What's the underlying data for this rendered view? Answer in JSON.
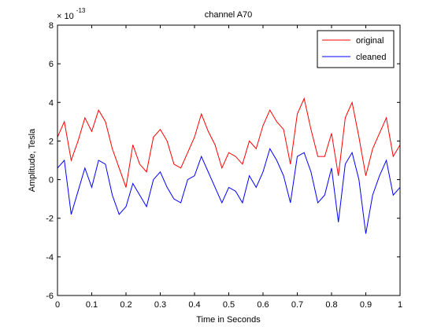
{
  "chart_data": {
    "type": "line",
    "title": "channel A70",
    "xlabel": "Time in Seconds",
    "ylabel": "Amplitude, Tesla",
    "xlim": [
      0,
      1
    ],
    "ylim": [
      -6,
      8
    ],
    "y_exponent_label": "× 10",
    "y_exponent_power": "-13",
    "x_ticks": [
      "0",
      "0.1",
      "0.2",
      "0.3",
      "0.4",
      "0.5",
      "0.6",
      "0.7",
      "0.8",
      "0.9",
      "1"
    ],
    "y_ticks": [
      "-6",
      "-4",
      "-2",
      "0",
      "2",
      "4",
      "6",
      "8"
    ],
    "grid": false,
    "legend_position": "top-right",
    "legend": [
      "original",
      "cleaned"
    ],
    "series": [
      {
        "name": "original",
        "color": "#ff0000",
        "x": [
          0,
          0.02,
          0.04,
          0.06,
          0.08,
          0.1,
          0.12,
          0.14,
          0.16,
          0.18,
          0.2,
          0.22,
          0.24,
          0.26,
          0.28,
          0.3,
          0.32,
          0.34,
          0.36,
          0.38,
          0.4,
          0.42,
          0.44,
          0.46,
          0.48,
          0.5,
          0.52,
          0.54,
          0.56,
          0.58,
          0.6,
          0.62,
          0.64,
          0.66,
          0.68,
          0.7,
          0.72,
          0.74,
          0.76,
          0.78,
          0.8,
          0.82,
          0.84,
          0.86,
          0.88,
          0.9,
          0.92,
          0.94,
          0.96,
          0.98,
          1
        ],
        "values": [
          2.2,
          3.0,
          1.0,
          2.0,
          3.2,
          2.5,
          3.6,
          3.0,
          1.6,
          0.6,
          -0.4,
          1.8,
          0.8,
          0.4,
          2.2,
          2.6,
          2.0,
          0.8,
          0.6,
          1.4,
          2.2,
          3.4,
          2.5,
          1.8,
          0.6,
          1.4,
          1.2,
          0.8,
          2.0,
          1.6,
          2.8,
          3.6,
          3.0,
          2.6,
          0.8,
          3.4,
          4.2,
          2.6,
          1.2,
          1.2,
          2.4,
          0.2,
          3.2,
          4.0,
          2.2,
          0.2,
          1.6,
          2.4,
          3.2,
          1.2,
          1.8
        ]
      },
      {
        "name": "cleaned",
        "color": "#0000ff",
        "x": [
          0,
          0.02,
          0.04,
          0.06,
          0.08,
          0.1,
          0.12,
          0.14,
          0.16,
          0.18,
          0.2,
          0.22,
          0.24,
          0.26,
          0.28,
          0.3,
          0.32,
          0.34,
          0.36,
          0.38,
          0.4,
          0.42,
          0.44,
          0.46,
          0.48,
          0.5,
          0.52,
          0.54,
          0.56,
          0.58,
          0.6,
          0.62,
          0.64,
          0.66,
          0.68,
          0.7,
          0.72,
          0.74,
          0.76,
          0.78,
          0.8,
          0.82,
          0.84,
          0.86,
          0.88,
          0.9,
          0.92,
          0.94,
          0.96,
          0.98,
          1
        ],
        "values": [
          0.6,
          1.0,
          -1.8,
          -0.6,
          0.6,
          -0.4,
          1.0,
          0.8,
          -0.8,
          -1.8,
          -1.4,
          -0.2,
          -0.8,
          -1.4,
          0.0,
          0.4,
          -0.4,
          -1.0,
          -1.2,
          0.0,
          0.2,
          1.2,
          0.4,
          -0.4,
          -1.2,
          -0.4,
          -0.6,
          -1.2,
          0.2,
          -0.4,
          0.4,
          1.6,
          1.0,
          0.2,
          -1.2,
          1.2,
          1.4,
          0.4,
          -1.2,
          -0.8,
          0.6,
          -2.2,
          0.8,
          1.4,
          0.0,
          -2.8,
          -0.8,
          0.2,
          1.0,
          -0.8,
          -0.4
        ]
      }
    ]
  }
}
